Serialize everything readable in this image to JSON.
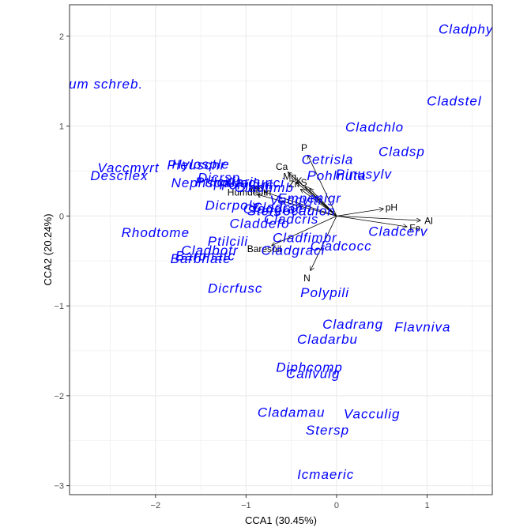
{
  "chart_data": {
    "type": "scatter",
    "title": "",
    "xlabel": "CCA1 (30.45%)",
    "ylabel": "CCA2 (20.24%)",
    "xlim": [
      -2.95,
      1.72
    ],
    "ylim": [
      -3.1,
      2.35
    ],
    "x_ticks": [
      -2,
      -1,
      0,
      1
    ],
    "y_ticks": [
      -3,
      -2,
      -1,
      0,
      1,
      2
    ],
    "grid": true,
    "species_color": "#0000ff",
    "vector_color": "#000000",
    "panel_background": "#ffffff",
    "grid_color": "#ebebeb",
    "species": [
      {
        "label": "Cladphyl",
        "x": 1.45,
        "y": 2.08
      },
      {
        "label": "Pleurozium schreb.",
        "x": -2.85,
        "y": 1.47
      },
      {
        "label": "Cladstel",
        "x": 1.3,
        "y": 1.28
      },
      {
        "label": "Cladchlo",
        "x": 0.42,
        "y": 0.99
      },
      {
        "label": "Cladsp",
        "x": 0.72,
        "y": 0.72
      },
      {
        "label": "Cetrisla",
        "x": -0.1,
        "y": 0.63
      },
      {
        "label": "Vaccmyrt",
        "x": -2.3,
        "y": 0.54
      },
      {
        "label": "Pleuschr",
        "x": -1.55,
        "y": 0.57
      },
      {
        "label": "Hylosple",
        "x": -1.5,
        "y": 0.58
      },
      {
        "label": "Pinusylv",
        "x": 0.3,
        "y": 0.47
      },
      {
        "label": "Descflex",
        "x": -2.4,
        "y": 0.45
      },
      {
        "label": "Dicrsp",
        "x": -1.3,
        "y": 0.43
      },
      {
        "label": "Pohlnuta",
        "x": 0.0,
        "y": 0.45
      },
      {
        "label": "Ptilciliaris",
        "x": -1.2,
        "y": 0.38
      },
      {
        "label": "Nephspp",
        "x": -1.5,
        "y": 0.37
      },
      {
        "label": "Cladunci",
        "x": -0.9,
        "y": 0.37
      },
      {
        "label": "Polyjuni",
        "x": -1.0,
        "y": 0.35
      },
      {
        "label": "Cladfimb",
        "x": -0.8,
        "y": 0.32
      },
      {
        "label": "Empenigr",
        "x": -0.3,
        "y": 0.2
      },
      {
        "label": "Vaccviti",
        "x": -0.45,
        "y": 0.18
      },
      {
        "label": "Dicrpoly",
        "x": -1.15,
        "y": 0.12
      },
      {
        "label": "Cladcorn",
        "x": -0.6,
        "y": 0.1
      },
      {
        "label": "Cladgrac",
        "x": -0.7,
        "y": 0.08
      },
      {
        "label": "Stereocaulon",
        "x": -0.5,
        "y": 0.06
      },
      {
        "label": "Cladcris",
        "x": -0.5,
        "y": -0.03
      },
      {
        "label": "Claddefo",
        "x": -0.85,
        "y": -0.08
      },
      {
        "label": "Cladcerv",
        "x": 0.68,
        "y": -0.17
      },
      {
        "label": "Rhodtome",
        "x": -2.0,
        "y": -0.18
      },
      {
        "label": "Cladfimbr",
        "x": -0.35,
        "y": -0.24
      },
      {
        "label": "Ptilcili",
        "x": -1.2,
        "y": -0.28
      },
      {
        "label": "Cladcocc",
        "x": 0.05,
        "y": -0.33
      },
      {
        "label": "Cladbotr",
        "x": -1.4,
        "y": -0.38
      },
      {
        "label": "Cladgraci",
        "x": -0.48,
        "y": -0.38
      },
      {
        "label": "Barbhatc",
        "x": -1.45,
        "y": -0.44
      },
      {
        "label": "Barbhate",
        "x": -1.5,
        "y": -0.47
      },
      {
        "label": "Dicrfusc",
        "x": -1.12,
        "y": -0.8
      },
      {
        "label": "Polypili",
        "x": -0.13,
        "y": -0.85
      },
      {
        "label": "Cladrang",
        "x": 0.18,
        "y": -1.2
      },
      {
        "label": "Flavniva",
        "x": 0.95,
        "y": -1.23
      },
      {
        "label": "Cladarbu",
        "x": -0.1,
        "y": -1.37
      },
      {
        "label": "Diphcomp",
        "x": -0.3,
        "y": -1.68
      },
      {
        "label": "Callvulg",
        "x": -0.26,
        "y": -1.75
      },
      {
        "label": "Cladamau",
        "x": -0.5,
        "y": -2.18
      },
      {
        "label": "Vacculig",
        "x": 0.39,
        "y": -2.2
      },
      {
        "label": "Stersp",
        "x": -0.1,
        "y": -2.38
      },
      {
        "label": "Icmaeric",
        "x": -0.12,
        "y": -2.87
      }
    ],
    "vectors": [
      {
        "label": "P",
        "x": -0.32,
        "y": 0.68
      },
      {
        "label": "Ca",
        "x": -0.54,
        "y": 0.49
      },
      {
        "label": "Mg",
        "x": -0.45,
        "y": 0.38
      },
      {
        "label": "K",
        "x": -0.35,
        "y": 0.33
      },
      {
        "label": "S",
        "x": -0.3,
        "y": 0.31
      },
      {
        "label": "Zn",
        "x": -0.4,
        "y": 0.3
      },
      {
        "label": "Mn",
        "x": -0.8,
        "y": 0.27
      },
      {
        "label": "Humdepth",
        "x": -0.88,
        "y": 0.24
      },
      {
        "label": "Baresoil",
        "x": -0.72,
        "y": -0.33
      },
      {
        "label": "N",
        "x": -0.29,
        "y": -0.61
      },
      {
        "label": "pH",
        "x": 0.52,
        "y": 0.08
      },
      {
        "label": "Al",
        "x": 0.93,
        "y": -0.05
      },
      {
        "label": "Fe",
        "x": 0.78,
        "y": -0.12
      }
    ]
  }
}
